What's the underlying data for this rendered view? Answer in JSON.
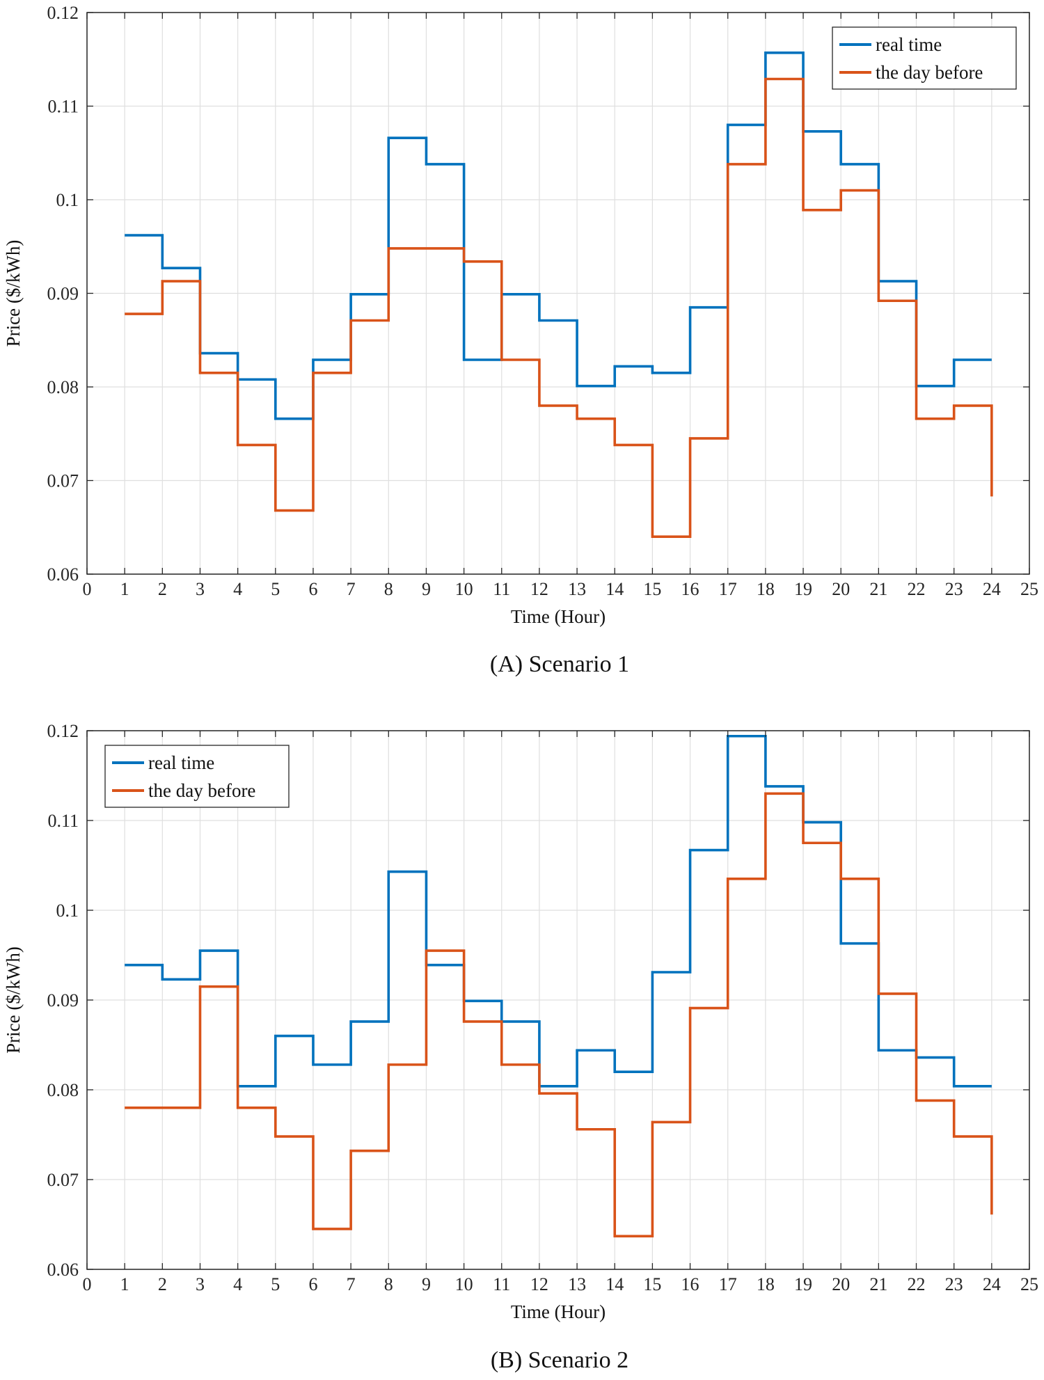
{
  "chart_data": [
    {
      "type": "line",
      "step": "post",
      "caption": "(A) Scenario 1",
      "xlabel": "Time (Hour)",
      "ylabel": "Price ($/kWh)",
      "xlim": [
        0,
        25
      ],
      "ylim": [
        0.06,
        0.12
      ],
      "xticks": [
        0,
        1,
        2,
        3,
        4,
        5,
        6,
        7,
        8,
        9,
        10,
        11,
        12,
        13,
        14,
        15,
        16,
        17,
        18,
        19,
        20,
        21,
        22,
        23,
        24,
        25
      ],
      "xtick_labels": [
        "0",
        "1",
        "2",
        "3",
        "4",
        "5",
        "6",
        "7",
        "8",
        "9",
        "10",
        "11",
        "12",
        "13",
        "14",
        "15",
        "16",
        "17",
        "18",
        "19",
        "20",
        "21",
        "22",
        "23",
        "24",
        "25"
      ],
      "yticks": [
        0.06,
        0.07,
        0.08,
        0.09,
        0.1,
        0.11,
        0.12
      ],
      "ytick_labels": [
        "0.06",
        "0.07",
        "0.08",
        "0.09",
        "0.1",
        "0.11",
        "0.12"
      ],
      "grid": true,
      "legend": "top-right",
      "x": [
        1,
        2,
        3,
        4,
        5,
        6,
        7,
        8,
        9,
        10,
        11,
        12,
        13,
        14,
        15,
        16,
        17,
        18,
        19,
        20,
        21,
        22,
        23,
        24
      ],
      "series": [
        {
          "name": "real time",
          "color": "#0072BD",
          "values": [
            0.0962,
            0.0927,
            0.0836,
            0.0808,
            0.0766,
            0.0829,
            0.0899,
            0.1066,
            0.1038,
            0.0829,
            0.0899,
            0.0871,
            0.0801,
            0.0822,
            0.0815,
            0.0885,
            0.108,
            0.1157,
            0.1073,
            0.1038,
            0.0913,
            0.0801,
            0.0829,
            0.0829
          ]
        },
        {
          "name": "the day before",
          "color": "#D95319",
          "values": [
            0.0878,
            0.0913,
            0.0815,
            0.0738,
            0.0668,
            0.0815,
            0.0871,
            0.0948,
            0.0948,
            0.0934,
            0.0829,
            0.078,
            0.0766,
            0.0738,
            0.064,
            0.0745,
            0.1038,
            0.1129,
            0.0989,
            0.101,
            0.0892,
            0.0766,
            0.078,
            0.0683
          ]
        }
      ]
    },
    {
      "type": "line",
      "step": "post",
      "caption": "(B) Scenario 2",
      "xlabel": "Time (Hour)",
      "ylabel": "Price ($/kWh)",
      "xlim": [
        0,
        25
      ],
      "ylim": [
        0.06,
        0.12
      ],
      "xticks": [
        0,
        1,
        2,
        3,
        4,
        5,
        6,
        7,
        8,
        9,
        10,
        11,
        12,
        13,
        14,
        15,
        16,
        17,
        18,
        19,
        20,
        21,
        22,
        23,
        24,
        25
      ],
      "xtick_labels": [
        "0",
        "1",
        "2",
        "3",
        "4",
        "5",
        "6",
        "7",
        "8",
        "9",
        "10",
        "11",
        "12",
        "13",
        "14",
        "15",
        "16",
        "17",
        "18",
        "19",
        "20",
        "21",
        "22",
        "23",
        "24",
        "25"
      ],
      "yticks": [
        0.06,
        0.07,
        0.08,
        0.09,
        0.1,
        0.11,
        0.12
      ],
      "ytick_labels": [
        "0.06",
        "0.07",
        "0.08",
        "0.09",
        "0.1",
        "0.11",
        "0.12"
      ],
      "grid": true,
      "legend": "top-left",
      "x": [
        1,
        2,
        3,
        4,
        5,
        6,
        7,
        8,
        9,
        10,
        11,
        12,
        13,
        14,
        15,
        16,
        17,
        18,
        19,
        20,
        21,
        22,
        23,
        24
      ],
      "series": [
        {
          "name": "real time",
          "color": "#0072BD",
          "values": [
            0.0939,
            0.0923,
            0.0955,
            0.0804,
            0.086,
            0.0828,
            0.0876,
            0.1043,
            0.0939,
            0.0899,
            0.0876,
            0.0804,
            0.0844,
            0.082,
            0.0931,
            0.1067,
            0.1194,
            0.1138,
            0.1098,
            0.0963,
            0.0844,
            0.0836,
            0.0804,
            0.0804
          ]
        },
        {
          "name": "the day before",
          "color": "#D95319",
          "values": [
            0.078,
            0.078,
            0.0915,
            0.078,
            0.0748,
            0.0645,
            0.0732,
            0.0828,
            0.0955,
            0.0876,
            0.0828,
            0.0796,
            0.0756,
            0.0637,
            0.0764,
            0.0891,
            0.1035,
            0.113,
            0.1075,
            0.1035,
            0.0907,
            0.0788,
            0.0748,
            0.0661
          ]
        }
      ]
    }
  ]
}
